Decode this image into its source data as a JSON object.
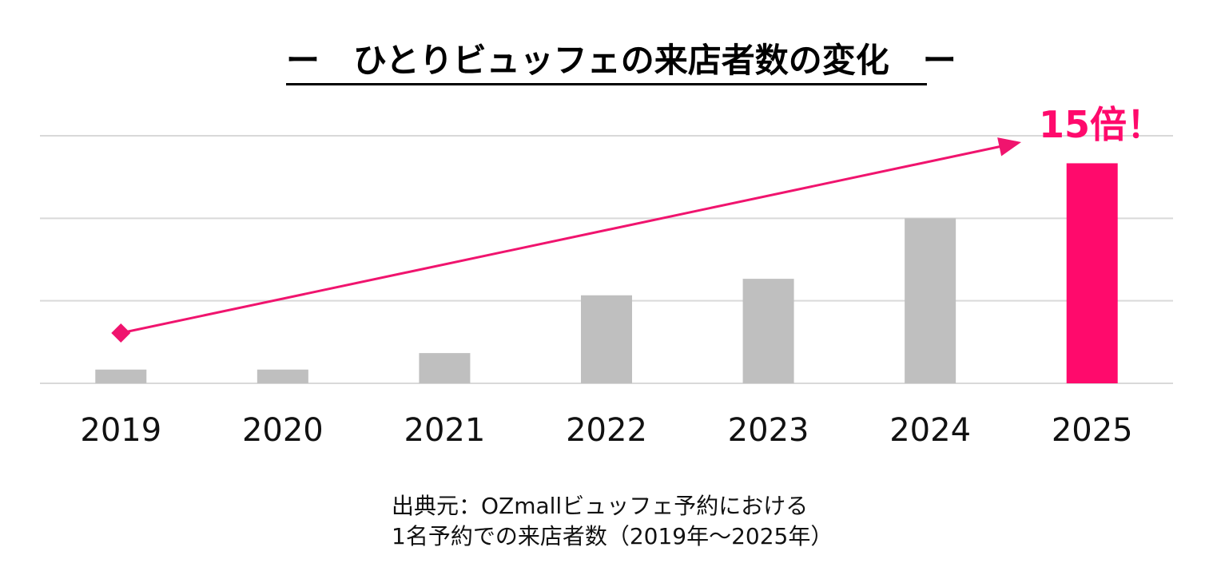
{
  "title": "ー　ひとりビュッフェの来店者数の変化　ー",
  "callout": "15倍！",
  "source_lines": [
    "出典元：OZmallビュッフェ予約における",
    "1名予約での来店者数（2019年～2025年）"
  ],
  "colors": {
    "bar_default": "#bfbfbf",
    "bar_highlight": "#ff0a6c",
    "gridline": "#d9d9d9",
    "arrow": "#f0146e"
  },
  "chart_data": {
    "type": "bar",
    "title": "ー　ひとりビュッフェの来店者数の変化　ー",
    "categories": [
      "2019",
      "2020",
      "2021",
      "2022",
      "2023",
      "2024",
      "2025"
    ],
    "values": [
      1,
      1,
      2.2,
      6.4,
      7.6,
      12,
      16
    ],
    "highlight_index": 6,
    "ylim": [
      0,
      18
    ],
    "gridlines": [
      0,
      6,
      12,
      18
    ],
    "yticks_shown": false,
    "xlabel": "",
    "ylabel": "",
    "annotation": {
      "text": "15倍！",
      "from_category": "2019",
      "to_category": "2025",
      "type": "trend-arrow"
    }
  }
}
